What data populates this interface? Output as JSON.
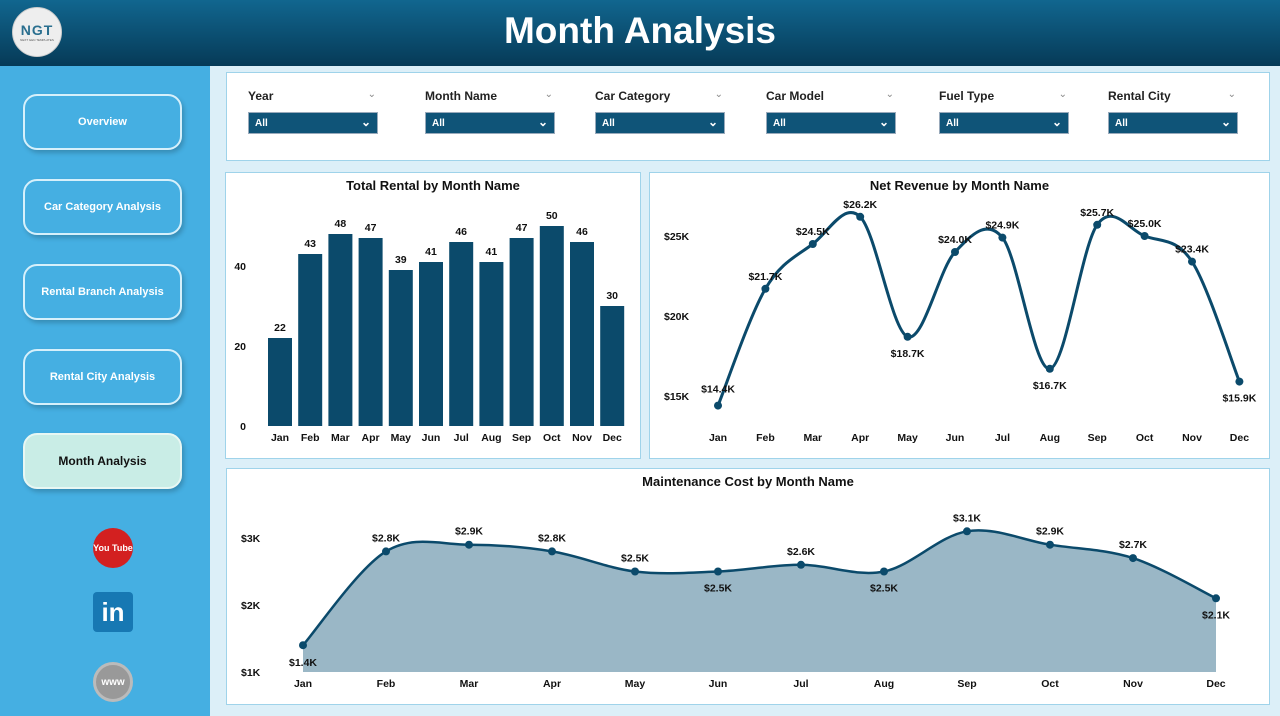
{
  "header": {
    "title": "Month Analysis",
    "logo_text": "NGT",
    "logo_sub": "NEXT GEN TEMPLATES"
  },
  "sidebar": {
    "items": [
      {
        "label": "Overview"
      },
      {
        "label": "Car Category Analysis"
      },
      {
        "label": "Rental Branch Analysis"
      },
      {
        "label": "Rental City Analysis"
      },
      {
        "label": "Month Analysis",
        "active": true
      }
    ],
    "social": [
      {
        "icon": "youtube-icon",
        "label": "You Tube"
      },
      {
        "icon": "linkedin-icon",
        "label": "in"
      },
      {
        "icon": "website-icon",
        "label": "www"
      }
    ]
  },
  "filters": [
    {
      "label": "Year",
      "value": "All"
    },
    {
      "label": "Month Name",
      "value": "All"
    },
    {
      "label": "Car Category",
      "value": "All"
    },
    {
      "label": "Car Model",
      "value": "All"
    },
    {
      "label": "Fuel Type",
      "value": "All"
    },
    {
      "label": "Rental City",
      "value": "All"
    }
  ],
  "colors": {
    "primary": "#0b4a6b",
    "area": "#9ab7c6",
    "sidebar": "#45afe2"
  },
  "chart_data": [
    {
      "type": "bar",
      "title": "Total Rental by Month Name",
      "categories": [
        "Jan",
        "Feb",
        "Mar",
        "Apr",
        "May",
        "Jun",
        "Jul",
        "Aug",
        "Sep",
        "Oct",
        "Nov",
        "Dec"
      ],
      "values": [
        22,
        43,
        48,
        47,
        39,
        41,
        46,
        41,
        47,
        50,
        46,
        30
      ],
      "yticks": [
        "0",
        "20",
        "40"
      ],
      "ylim": [
        0,
        55
      ],
      "grid": false
    },
    {
      "type": "line",
      "title": "Net Revenue by Month Name",
      "categories": [
        "Jan",
        "Feb",
        "Mar",
        "Apr",
        "May",
        "Jun",
        "Jul",
        "Aug",
        "Sep",
        "Oct",
        "Nov",
        "Dec"
      ],
      "values": [
        14.4,
        21.7,
        24.5,
        26.2,
        18.7,
        24.0,
        24.9,
        16.7,
        25.7,
        25.0,
        23.4,
        15.9
      ],
      "labels": [
        "$14.4K",
        "$21.7K",
        "$24.5K",
        "$26.2K",
        "$18.7K",
        "$24.0K",
        "$24.9K",
        "$16.7K",
        "$25.7K",
        "$25.0K",
        "$23.4K",
        "$15.9K"
      ],
      "yticks": [
        "$15K",
        "$20K",
        "$25K"
      ],
      "ylim": [
        13.5,
        27.5
      ],
      "grid": false
    },
    {
      "type": "area",
      "title": "Maintenance Cost by Month Name",
      "categories": [
        "Jan",
        "Feb",
        "Mar",
        "Apr",
        "May",
        "Jun",
        "Jul",
        "Aug",
        "Sep",
        "Oct",
        "Nov",
        "Dec"
      ],
      "values": [
        1.4,
        2.8,
        2.9,
        2.8,
        2.5,
        2.5,
        2.6,
        2.5,
        3.1,
        2.9,
        2.7,
        2.1
      ],
      "labels": [
        "$1.4K",
        "$2.8K",
        "$2.9K",
        "$2.8K",
        "$2.5K",
        "$2.5K",
        "$2.6K",
        "$2.5K",
        "$3.1K",
        "$2.9K",
        "$2.7K",
        "$2.1K"
      ],
      "yticks": [
        "$1K",
        "$2K",
        "$3K"
      ],
      "ylim": [
        1,
        3.35
      ],
      "grid": false
    }
  ]
}
